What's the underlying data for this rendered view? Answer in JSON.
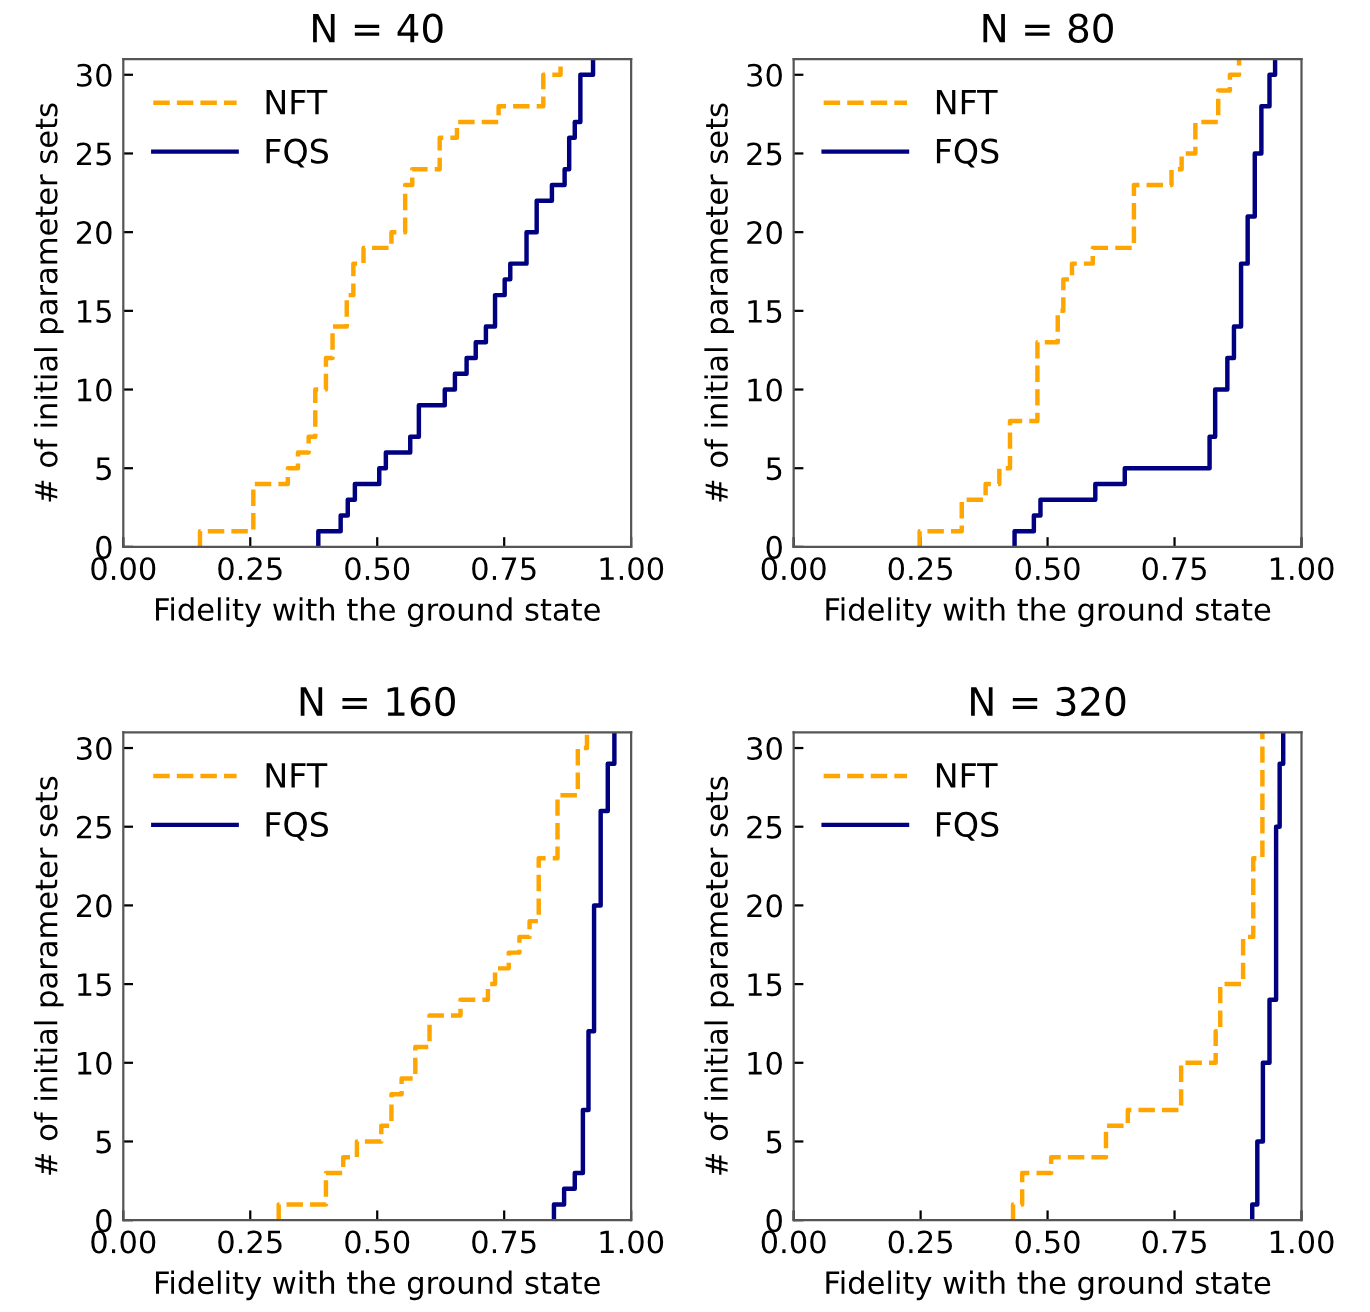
{
  "chart_data": [
    {
      "type": "step",
      "title": "N = 40",
      "xlabel": "Fidelity with the ground state",
      "ylabel": "# of initial parameter sets",
      "xlim": [
        0,
        1
      ],
      "xticks": [
        {
          "value": 0,
          "label": "0.00"
        },
        {
          "value": 0.25,
          "label": "0.25"
        },
        {
          "value": 0.5,
          "label": "0.50"
        },
        {
          "value": 0.75,
          "label": "0.75"
        },
        {
          "value": 1,
          "label": "1.00"
        }
      ],
      "ylim": [
        0,
        31
      ],
      "yticks": [
        0,
        5,
        10,
        15,
        20,
        25,
        30
      ],
      "grid": false,
      "legend": "top left",
      "series": [
        {
          "name": "NFT",
          "color": "#ffa500",
          "line_style": "dashed",
          "x": [
            0.151,
            0.151,
            0.256,
            0.324,
            0.344,
            0.365,
            0.378,
            0.399,
            0.412,
            0.44,
            0.453,
            0.473,
            0.528,
            0.555,
            0.569,
            0.623,
            0.657,
            0.739,
            0.827,
            0.861
          ],
          "values": [
            0,
            1,
            4,
            5,
            6,
            7,
            10,
            12,
            14,
            16,
            18,
            19,
            20,
            23,
            24,
            26,
            27,
            28,
            30,
            31
          ]
        },
        {
          "name": "FQS",
          "color": "#000080",
          "line_style": "solid",
          "x": [
            0.384,
            0.384,
            0.428,
            0.442,
            0.456,
            0.504,
            0.517,
            0.565,
            0.582,
            0.633,
            0.653,
            0.676,
            0.694,
            0.714,
            0.732,
            0.751,
            0.762,
            0.794,
            0.814,
            0.844,
            0.869,
            0.878,
            0.889,
            0.9,
            0.925
          ],
          "values": [
            0,
            1,
            2,
            3,
            4,
            5,
            6,
            7,
            9,
            10,
            11,
            12,
            13,
            14,
            16,
            17,
            18,
            20,
            22,
            23,
            24,
            26,
            27,
            30,
            31
          ]
        }
      ]
    },
    {
      "type": "step",
      "title": "N = 80",
      "xlabel": "Fidelity with the ground state",
      "ylabel": "# of initial parameter sets",
      "xlim": [
        0,
        1
      ],
      "xticks": [
        {
          "value": 0,
          "label": "0.00"
        },
        {
          "value": 0.25,
          "label": "0.25"
        },
        {
          "value": 0.5,
          "label": "0.50"
        },
        {
          "value": 0.75,
          "label": "0.75"
        },
        {
          "value": 1,
          "label": "1.00"
        }
      ],
      "ylim": [
        0,
        31
      ],
      "yticks": [
        0,
        5,
        10,
        15,
        20,
        25,
        30
      ],
      "grid": false,
      "legend": "top left",
      "series": [
        {
          "name": "NFT",
          "color": "#ffa500",
          "line_style": "dashed",
          "x": [
            0.248,
            0.248,
            0.331,
            0.378,
            0.405,
            0.426,
            0.48,
            0.52,
            0.531,
            0.548,
            0.589,
            0.67,
            0.744,
            0.764,
            0.791,
            0.836,
            0.859,
            0.877
          ],
          "values": [
            0,
            1,
            3,
            4,
            5,
            8,
            13,
            15,
            17,
            18,
            19,
            23,
            24,
            25,
            27,
            29,
            30,
            31
          ]
        },
        {
          "name": "FQS",
          "color": "#000080",
          "line_style": "solid",
          "x": [
            0.435,
            0.435,
            0.473,
            0.486,
            0.594,
            0.652,
            0.819,
            0.83,
            0.854,
            0.867,
            0.881,
            0.894,
            0.908,
            0.921,
            0.937,
            0.948
          ],
          "values": [
            0,
            1,
            2,
            3,
            4,
            5,
            7,
            10,
            12,
            14,
            18,
            21,
            25,
            28,
            30,
            31
          ]
        }
      ]
    },
    {
      "type": "step",
      "title": "N = 160",
      "xlabel": "Fidelity with the ground state",
      "ylabel": "# of initial parameter sets",
      "xlim": [
        0,
        1
      ],
      "xticks": [
        {
          "value": 0,
          "label": "0.00"
        },
        {
          "value": 0.25,
          "label": "0.25"
        },
        {
          "value": 0.5,
          "label": "0.50"
        },
        {
          "value": 0.75,
          "label": "0.75"
        },
        {
          "value": 1,
          "label": "1.00"
        }
      ],
      "ylim": [
        0,
        31
      ],
      "yticks": [
        0,
        5,
        10,
        15,
        20,
        25,
        30
      ],
      "grid": false,
      "legend": "top left",
      "series": [
        {
          "name": "NFT",
          "color": "#ffa500",
          "line_style": "dashed",
          "x": [
            0.306,
            0.306,
            0.399,
            0.433,
            0.46,
            0.508,
            0.528,
            0.548,
            0.575,
            0.603,
            0.664,
            0.718,
            0.732,
            0.759,
            0.78,
            0.8,
            0.818,
            0.855,
            0.895,
            0.913
          ],
          "values": [
            0,
            1,
            3,
            4,
            5,
            6,
            8,
            9,
            11,
            13,
            14,
            15,
            16,
            17,
            18,
            19,
            23,
            27,
            30,
            31
          ]
        },
        {
          "name": "FQS",
          "color": "#000080",
          "line_style": "solid",
          "x": [
            0.848,
            0.848,
            0.868,
            0.889,
            0.905,
            0.916,
            0.927,
            0.94,
            0.954,
            0.967
          ],
          "values": [
            0,
            1,
            2,
            3,
            7,
            12,
            20,
            26,
            29,
            31
          ]
        }
      ]
    },
    {
      "type": "step",
      "title": "N = 320",
      "xlabel": "Fidelity with the ground state",
      "ylabel": "# of initial parameter sets",
      "xlim": [
        0,
        1
      ],
      "xticks": [
        {
          "value": 0,
          "label": "0.00"
        },
        {
          "value": 0.25,
          "label": "0.25"
        },
        {
          "value": 0.5,
          "label": "0.50"
        },
        {
          "value": 0.75,
          "label": "0.75"
        },
        {
          "value": 1,
          "label": "1.00"
        }
      ],
      "ylim": [
        0,
        31
      ],
      "yticks": [
        0,
        5,
        10,
        15,
        20,
        25,
        30
      ],
      "grid": false,
      "legend": "top left",
      "series": [
        {
          "name": "NFT",
          "color": "#ffa500",
          "line_style": "dashed",
          "x": [
            0.432,
            0.432,
            0.45,
            0.507,
            0.615,
            0.658,
            0.763,
            0.831,
            0.84,
            0.885,
            0.905,
            0.923
          ],
          "values": [
            0,
            1,
            3,
            4,
            6,
            7,
            10,
            12,
            15,
            18,
            23,
            31
          ]
        },
        {
          "name": "FQS",
          "color": "#000080",
          "line_style": "solid",
          "x": [
            0.903,
            0.903,
            0.913,
            0.924,
            0.937,
            0.95,
            0.957,
            0.964
          ],
          "values": [
            0,
            1,
            5,
            10,
            14,
            25,
            29,
            31
          ]
        }
      ]
    }
  ]
}
